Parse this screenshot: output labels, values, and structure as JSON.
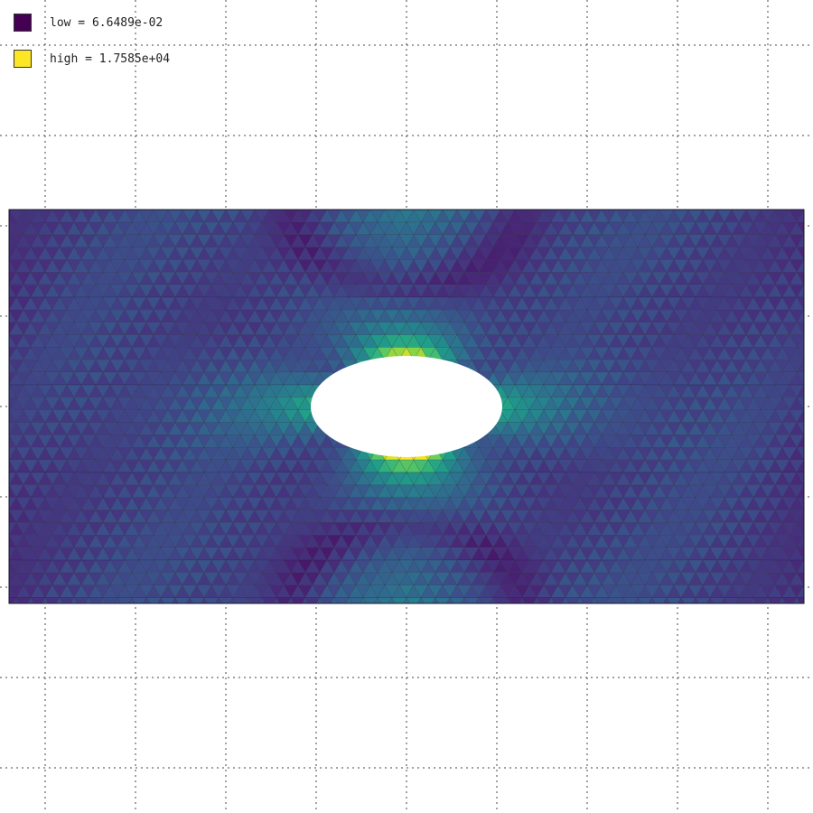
{
  "legend": {
    "low": {
      "label": "low = 6.6489e-02",
      "color": "#440154"
    },
    "high": {
      "label": "high = 1.7585e+04",
      "color": "#fde725"
    }
  },
  "colormap": [
    "#440154",
    "#482878",
    "#3e4989",
    "#31688e",
    "#26828e",
    "#1f9e89",
    "#35b779",
    "#6ece58",
    "#b5de2b",
    "#fde725"
  ],
  "mesh": {
    "edge_color": "#1a1a2e",
    "hole_fill": "#ffffff"
  },
  "grid": {
    "visible": true,
    "style": "dotted",
    "color": "#444444"
  }
}
